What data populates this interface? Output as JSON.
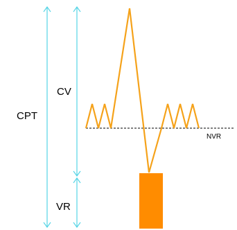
{
  "labels": {
    "cpt": "CPT",
    "cv": "CV",
    "vr": "VR",
    "nvr": "NVR"
  },
  "colors": {
    "arrow": "#55d4e6",
    "waveform": "#f5a21a",
    "block": "#ff8c00",
    "baseline": "#000000"
  }
}
